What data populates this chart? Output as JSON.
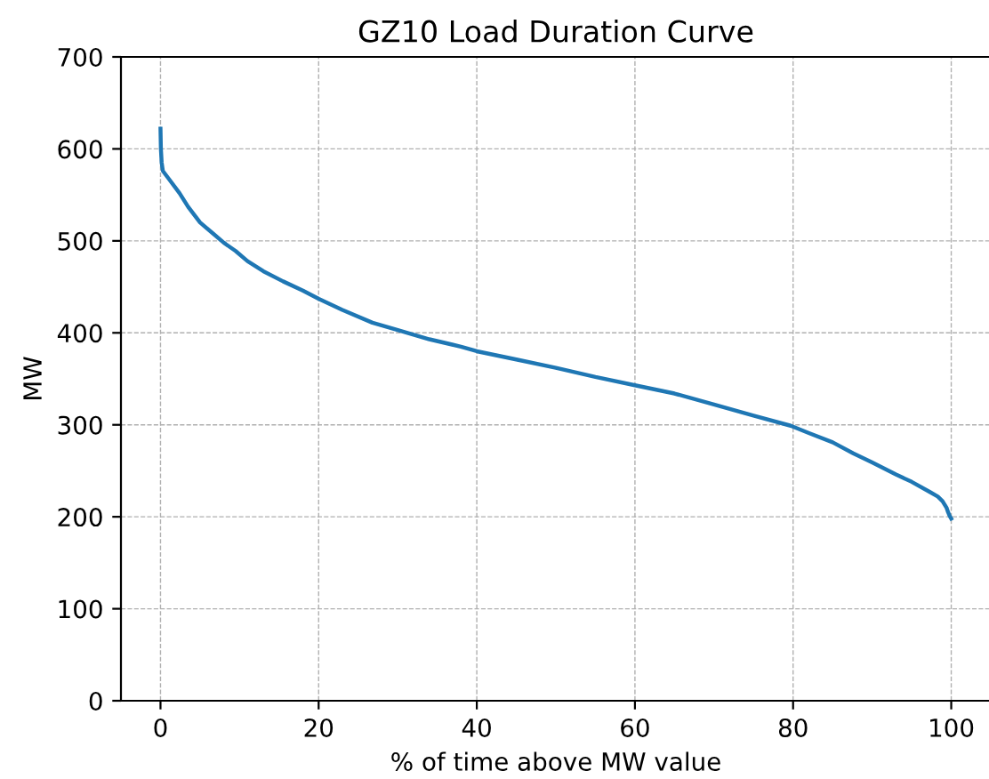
{
  "chart_data": {
    "type": "line",
    "title": "GZ10 Load Duration Curve",
    "xlabel": "% of time above MW value",
    "ylabel": "MW",
    "series": [
      {
        "color": "#1f77b4",
        "x": [
          0,
          0.05,
          0.15,
          0.3,
          1,
          2.4,
          3.5,
          5,
          6.5,
          8,
          9.5,
          11,
          13,
          15.5,
          18,
          20,
          23,
          26.8,
          30,
          34,
          38,
          40,
          45,
          50,
          55,
          60,
          65,
          70,
          75,
          79.7,
          82,
          85,
          87.6,
          90,
          93,
          95,
          97.3,
          98.3,
          98.9,
          99.4,
          99.6,
          99.8,
          100
        ],
        "values": [
          622,
          600,
          585,
          576,
          568,
          552,
          537,
          520,
          509,
          498,
          489,
          478,
          467,
          456,
          446,
          437,
          425,
          411,
          403,
          393,
          385,
          380,
          371,
          362,
          352,
          343,
          334,
          322,
          310,
          299,
          291,
          281,
          269,
          259,
          246,
          238,
          227,
          222,
          217,
          210,
          205,
          201,
          198
        ]
      }
    ],
    "xlim": [
      -5,
      105
    ],
    "ylim": [
      0,
      700
    ],
    "xticks": [
      0,
      20,
      40,
      60,
      80,
      100
    ],
    "yticks": [
      0,
      100,
      200,
      300,
      400,
      500,
      600,
      700
    ],
    "grid": true
  }
}
